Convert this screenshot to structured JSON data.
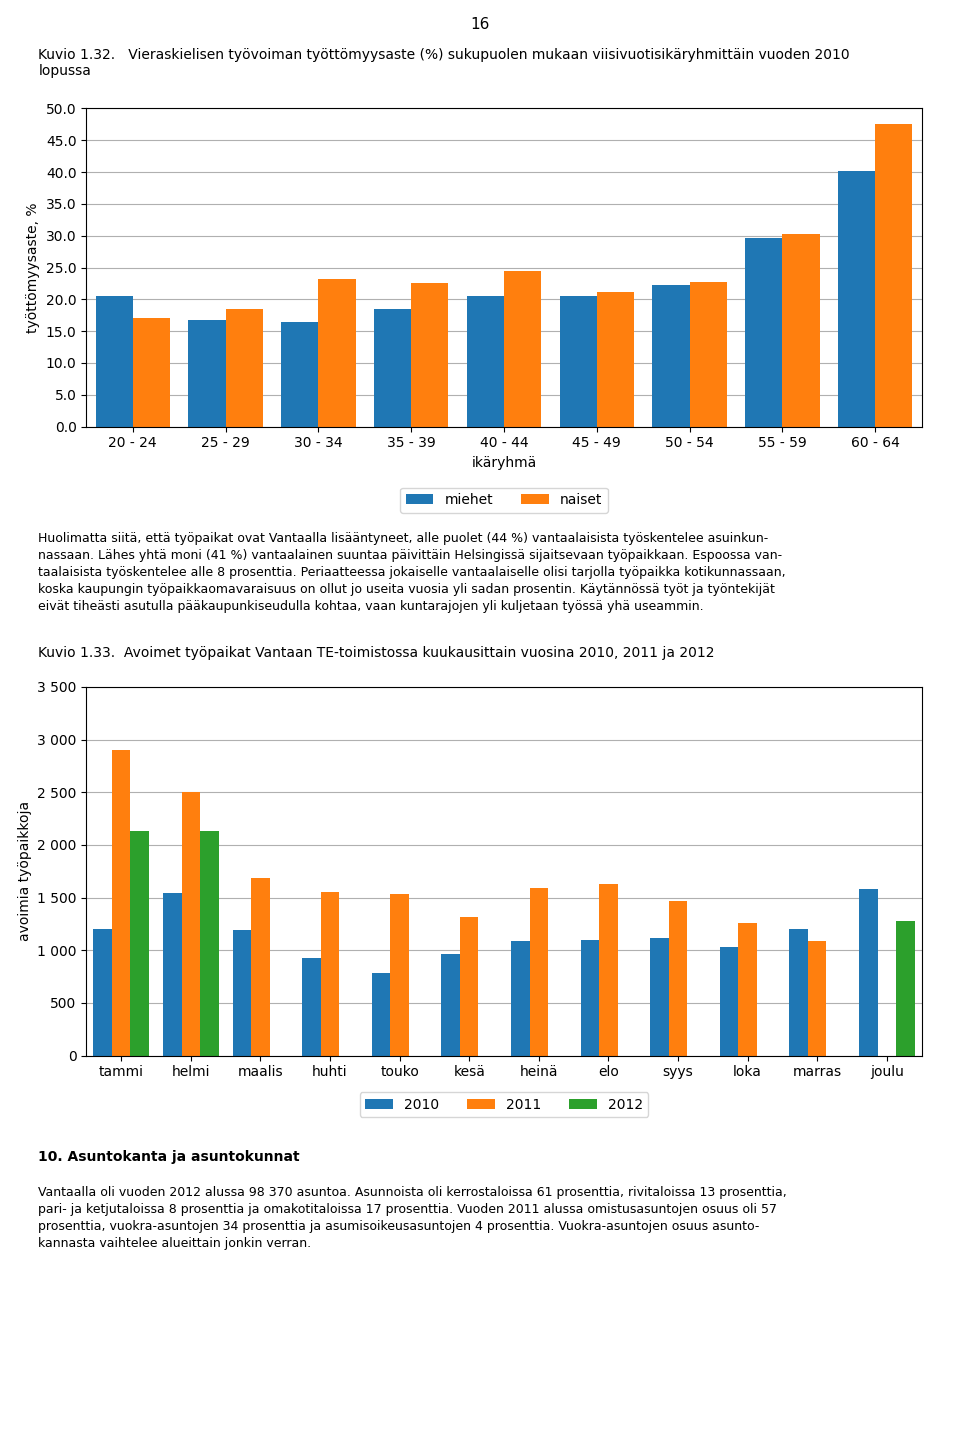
{
  "chart_data": [
    {
      "type": "bar",
      "title": "Kuvio 1.32.   Vieraskielisen työvoiman työttömyysaste (%) sukupuolen mukaan viisivuotisikäryhmittäin vuoden 2010\nlopussa",
      "categories": [
        "20 - 24",
        "25 - 29",
        "30 - 34",
        "35 - 39",
        "40 - 44",
        "45 - 49",
        "50 - 54",
        "55 - 59",
        "60 - 64"
      ],
      "series": [
        {
          "name": "miehet",
          "values": [
            20.5,
            16.7,
            16.5,
            18.5,
            20.6,
            20.5,
            22.3,
            29.7,
            40.2
          ]
        },
        {
          "name": "naiset",
          "values": [
            17.0,
            18.5,
            23.2,
            22.5,
            24.5,
            21.2,
            22.8,
            30.3,
            47.5
          ]
        }
      ],
      "xlabel": "ikäryhmä",
      "ylabel": "työttömyysaste, %",
      "ylim": [
        0,
        50
      ],
      "yticks": [
        {
          "value": 0,
          "label": "0.0"
        },
        {
          "value": 5,
          "label": "5.0"
        },
        {
          "value": 10,
          "label": "10.0"
        },
        {
          "value": 15,
          "label": "15.0"
        },
        {
          "value": 20,
          "label": "20.0"
        },
        {
          "value": 25,
          "label": "25.0"
        },
        {
          "value": 30,
          "label": "30.0"
        },
        {
          "value": 35,
          "label": "35.0"
        },
        {
          "value": 40,
          "label": "40.0"
        },
        {
          "value": 45,
          "label": "45.0"
        },
        {
          "value": 50,
          "label": "50.0"
        }
      ],
      "grid": true,
      "legend": "lower center"
    },
    {
      "type": "bar",
      "title": "Kuvio 1.33.  Avoimet työpaikat Vantaan TE-toimistossa kuukausittain vuosina 2010, 2011 ja 2012",
      "categories": [
        "tammi",
        "helmi",
        "maalis",
        "huhti",
        "touko",
        "kesä",
        "heinä",
        "elo",
        "syys",
        "loka",
        "marras",
        "joulu"
      ],
      "series": [
        {
          "name": "2010",
          "values": [
            1200,
            1540,
            1190,
            930,
            780,
            960,
            1090,
            1100,
            1115,
            1035,
            1200,
            1580
          ]
        },
        {
          "name": "2011",
          "values": [
            2900,
            2500,
            1690,
            1550,
            1530,
            1320,
            1590,
            1630,
            1470,
            1260,
            1090,
            null
          ]
        },
        {
          "name": "2012",
          "values": [
            2130,
            2130,
            null,
            null,
            null,
            null,
            null,
            null,
            null,
            null,
            null,
            1280
          ]
        }
      ],
      "ylabel": "avoimia työpaikkoja",
      "ylim": [
        0,
        3500
      ],
      "yticks": [
        0,
        500,
        {
          "value": 1000,
          "label": "1 000"
        },
        {
          "value": 1500,
          "label": "1 500"
        },
        {
          "value": 2000,
          "label": "2 000"
        },
        {
          "value": 2500,
          "label": "2 500"
        },
        {
          "value": 3000,
          "label": "3 000"
        },
        {
          "value": 3500,
          "label": "3 500"
        }
      ],
      "grid": true,
      "legend": "lower center"
    }
  ],
  "annotations": [
    "16",
    "Huolimatta siitä, että työpaikat ovat Vantaalla lisääntyneet, alle puolet (44 %) vantaalaisista työskentelee asuinkun-\nnassaan. Lähes yhtä moni (41 %) vantaalainen suuntaa päivittäin Helsingissä sijaitsevaan työpaikkaan. Espoossa van-\ntaalaisista työskentelee alle 8 prosenttia. Periaatteessa jokaiselle vantaalaiselle olisi tarjolla työpaikka kotikunnassaan,\nkoska kaupungin työpaikkaomavaraisuus on ollut jo useita vuosia yli sadan prosentin. Käytännössä työt ja työntekijät\neivät tiheästi asutulla pääkaupunkiseudulla kohtaa, vaan kuntarajojen yli kuljetaan työssä yhä useammin.",
    "10. Asuntokanta ja asuntokunnat",
    "Vantaalla oli vuoden 2012 alussa 98 370 asuntoa. Asunnoista oli kerrostaloissa 61 prosenttia, rivitaloissa 13 prosenttia,\npari- ja ketjutaloissa 8 prosenttia ja omakotitaloissa 17 prosenttia. Vuoden 2011 alussa omistusasuntojen osuus oli 57\nprosenttia, vuokra-asuntojen 34 prosenttia ja asumisoikeusasuntojen 4 prosenttia. Vuokra-asuntojen osuus asunto-\nkannasta vaihtelee alueittain jonkin verran."
  ]
}
